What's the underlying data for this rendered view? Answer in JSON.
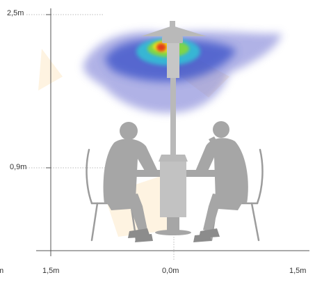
{
  "diagram": {
    "y_labels": {
      "top": "2,5m",
      "mid": "0,9m"
    },
    "x_labels": {
      "left": "1,5m",
      "center": "0,0m",
      "right": "1,5m",
      "edge": "m"
    },
    "colors": {
      "axis": "#555555",
      "guide": "#bbbbbb",
      "silhouette": "#a6a6a6",
      "silhouette_dark": "#8c8c8c",
      "heater": "#b9b9b9",
      "watermark": "#fde9c8",
      "heat_outer": "#7b7fd6",
      "heat_mid": "#3950c8",
      "heat_cyan": "#33c4d6",
      "heat_green": "#7fd44a",
      "heat_yellow": "#f3e51f",
      "heat_red": "#e23a1c"
    }
  }
}
